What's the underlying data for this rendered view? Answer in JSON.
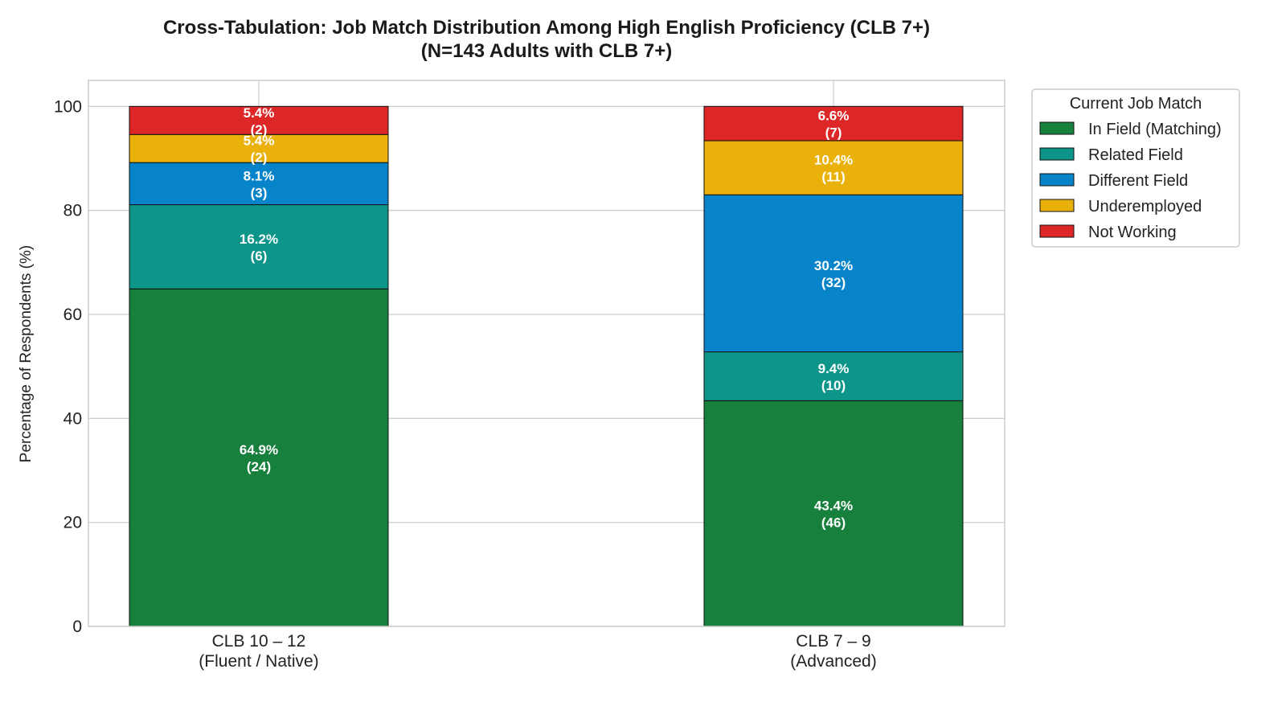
{
  "chart_data": {
    "type": "bar",
    "stacked": true,
    "title": "Cross-Tabulation: Job Match Distribution Among High English Proficiency (CLB 7+)",
    "subtitle": "(N=143 Adults with CLB 7+)",
    "ylabel": "Percentage of Respondents (%)",
    "xlabel": "",
    "ylim": [
      0,
      105
    ],
    "yticks": [
      0,
      20,
      40,
      60,
      80,
      100
    ],
    "grid": true,
    "legend_title": "Current Job Match",
    "legend_position": "top-right-outside",
    "categories": [
      {
        "line1": "CLB 10 – 12",
        "line2": "(Fluent / Native)"
      },
      {
        "line1": "CLB 7 – 9",
        "line2": "(Advanced)"
      }
    ],
    "series": [
      {
        "name": "In Field (Matching)",
        "color": "#17803d",
        "values": [
          64.9,
          43.4
        ],
        "counts": [
          24,
          46
        ],
        "pct_labels": [
          "64.9%",
          "43.4%"
        ],
        "count_labels": [
          "(24)",
          "(46)"
        ]
      },
      {
        "name": "Related Field",
        "color": "#0e958a",
        "values": [
          16.2,
          9.4
        ],
        "counts": [
          6,
          10
        ],
        "pct_labels": [
          "16.2%",
          "9.4%"
        ],
        "count_labels": [
          "(6)",
          "(10)"
        ]
      },
      {
        "name": "Different Field",
        "color": "#0784c9",
        "values": [
          8.1,
          30.2
        ],
        "counts": [
          3,
          32
        ],
        "pct_labels": [
          "8.1%",
          "30.2%"
        ],
        "count_labels": [
          "(3)",
          "(32)"
        ]
      },
      {
        "name": "Underemployed",
        "color": "#e9b10a",
        "values": [
          5.4,
          10.4
        ],
        "counts": [
          2,
          11
        ],
        "pct_labels": [
          "5.4%",
          "10.4%"
        ],
        "count_labels": [
          "(2)",
          "(11)"
        ]
      },
      {
        "name": "Not Working",
        "color": "#dd2727",
        "values": [
          5.4,
          6.6
        ],
        "counts": [
          2,
          7
        ],
        "pct_labels": [
          "5.4%",
          "6.6%"
        ],
        "count_labels": [
          "(2)",
          "(7)"
        ]
      }
    ]
  }
}
